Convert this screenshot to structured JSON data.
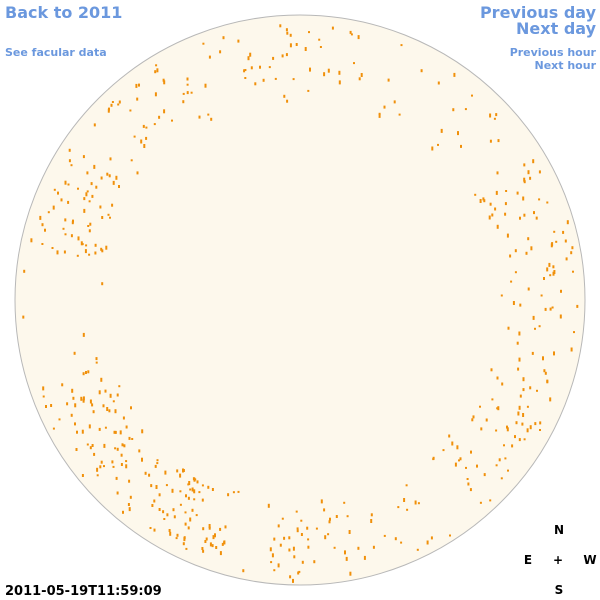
{
  "links": {
    "back": "Back to 2011",
    "facular": "See facular data",
    "previous_day": "Previous day",
    "next_day": "Next day",
    "previous_hour": "Previous hour",
    "next_hour": "Next hour"
  },
  "timestamp": "2011-05-19T11:59:09",
  "compass": {
    "north": "N",
    "east": "E",
    "center": "+",
    "west": "W",
    "south": "S"
  }
}
